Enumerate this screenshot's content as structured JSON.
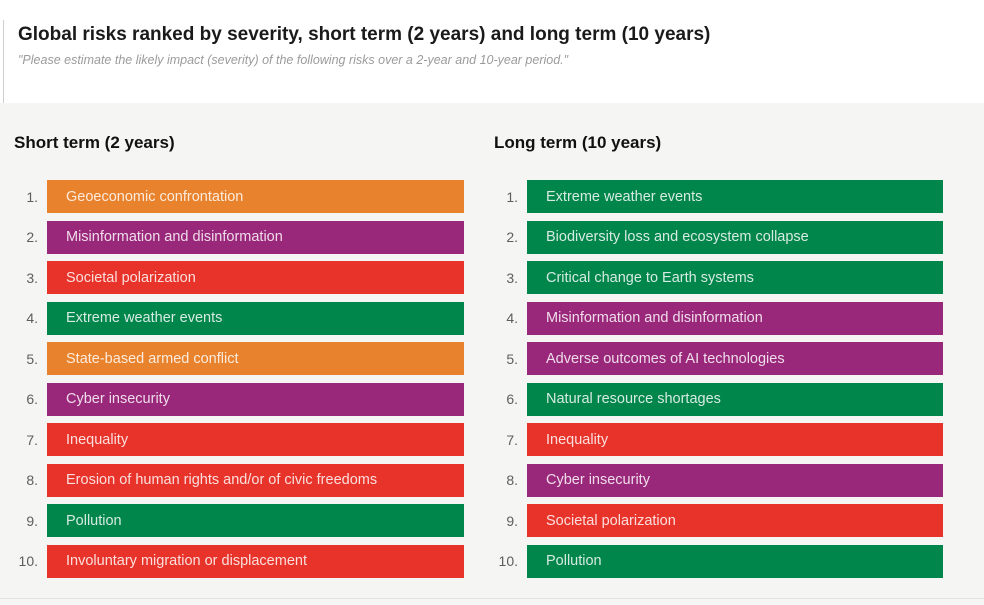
{
  "header": {
    "title": "Global risks ranked by severity, short term (2 years) and long term (10 years)",
    "subtitle": "\"Please estimate the likely impact (severity) of the following risks over a 2-year and 10-year period.\""
  },
  "palette": {
    "orange": "#E8822C",
    "purple": "#9A287A",
    "red": "#E73329",
    "green": "#00854B"
  },
  "chart_data": {
    "type": "table",
    "title": "Global risks ranked by severity, short term (2 years) and long term (10 years)",
    "subtitle": "\"Please estimate the likely impact (severity) of the following risks over a 2-year and 10-year period.\"",
    "legend": "none",
    "columns": [
      {
        "label": "Short term (2 years)",
        "items": [
          {
            "rank": "1.",
            "label": "Geoeconomic confrontation",
            "color": "orange"
          },
          {
            "rank": "2.",
            "label": "Misinformation and disinformation",
            "color": "purple"
          },
          {
            "rank": "3.",
            "label": "Societal polarization",
            "color": "red"
          },
          {
            "rank": "4.",
            "label": "Extreme weather events",
            "color": "green"
          },
          {
            "rank": "5.",
            "label": "State-based armed conflict",
            "color": "orange"
          },
          {
            "rank": "6.",
            "label": "Cyber insecurity",
            "color": "purple"
          },
          {
            "rank": "7.",
            "label": "Inequality",
            "color": "red"
          },
          {
            "rank": "8.",
            "label": "Erosion of human rights and/or of civic freedoms",
            "color": "red"
          },
          {
            "rank": "9.",
            "label": "Pollution",
            "color": "green"
          },
          {
            "rank": "10.",
            "label": "Involuntary migration or displacement",
            "color": "red"
          }
        ]
      },
      {
        "label": "Long term (10 years)",
        "items": [
          {
            "rank": "1.",
            "label": "Extreme weather events",
            "color": "green"
          },
          {
            "rank": "2.",
            "label": "Biodiversity loss and ecosystem collapse",
            "color": "green"
          },
          {
            "rank": "3.",
            "label": "Critical change to Earth systems",
            "color": "green"
          },
          {
            "rank": "4.",
            "label": "Misinformation and disinformation",
            "color": "purple"
          },
          {
            "rank": "5.",
            "label": "Adverse outcomes of AI technologies",
            "color": "purple"
          },
          {
            "rank": "6.",
            "label": "Natural resource shortages",
            "color": "green"
          },
          {
            "rank": "7.",
            "label": "Inequality",
            "color": "red"
          },
          {
            "rank": "8.",
            "label": "Cyber insecurity",
            "color": "purple"
          },
          {
            "rank": "9.",
            "label": "Societal polarization",
            "color": "red"
          },
          {
            "rank": "10.",
            "label": "Pollution",
            "color": "green"
          }
        ]
      }
    ]
  }
}
